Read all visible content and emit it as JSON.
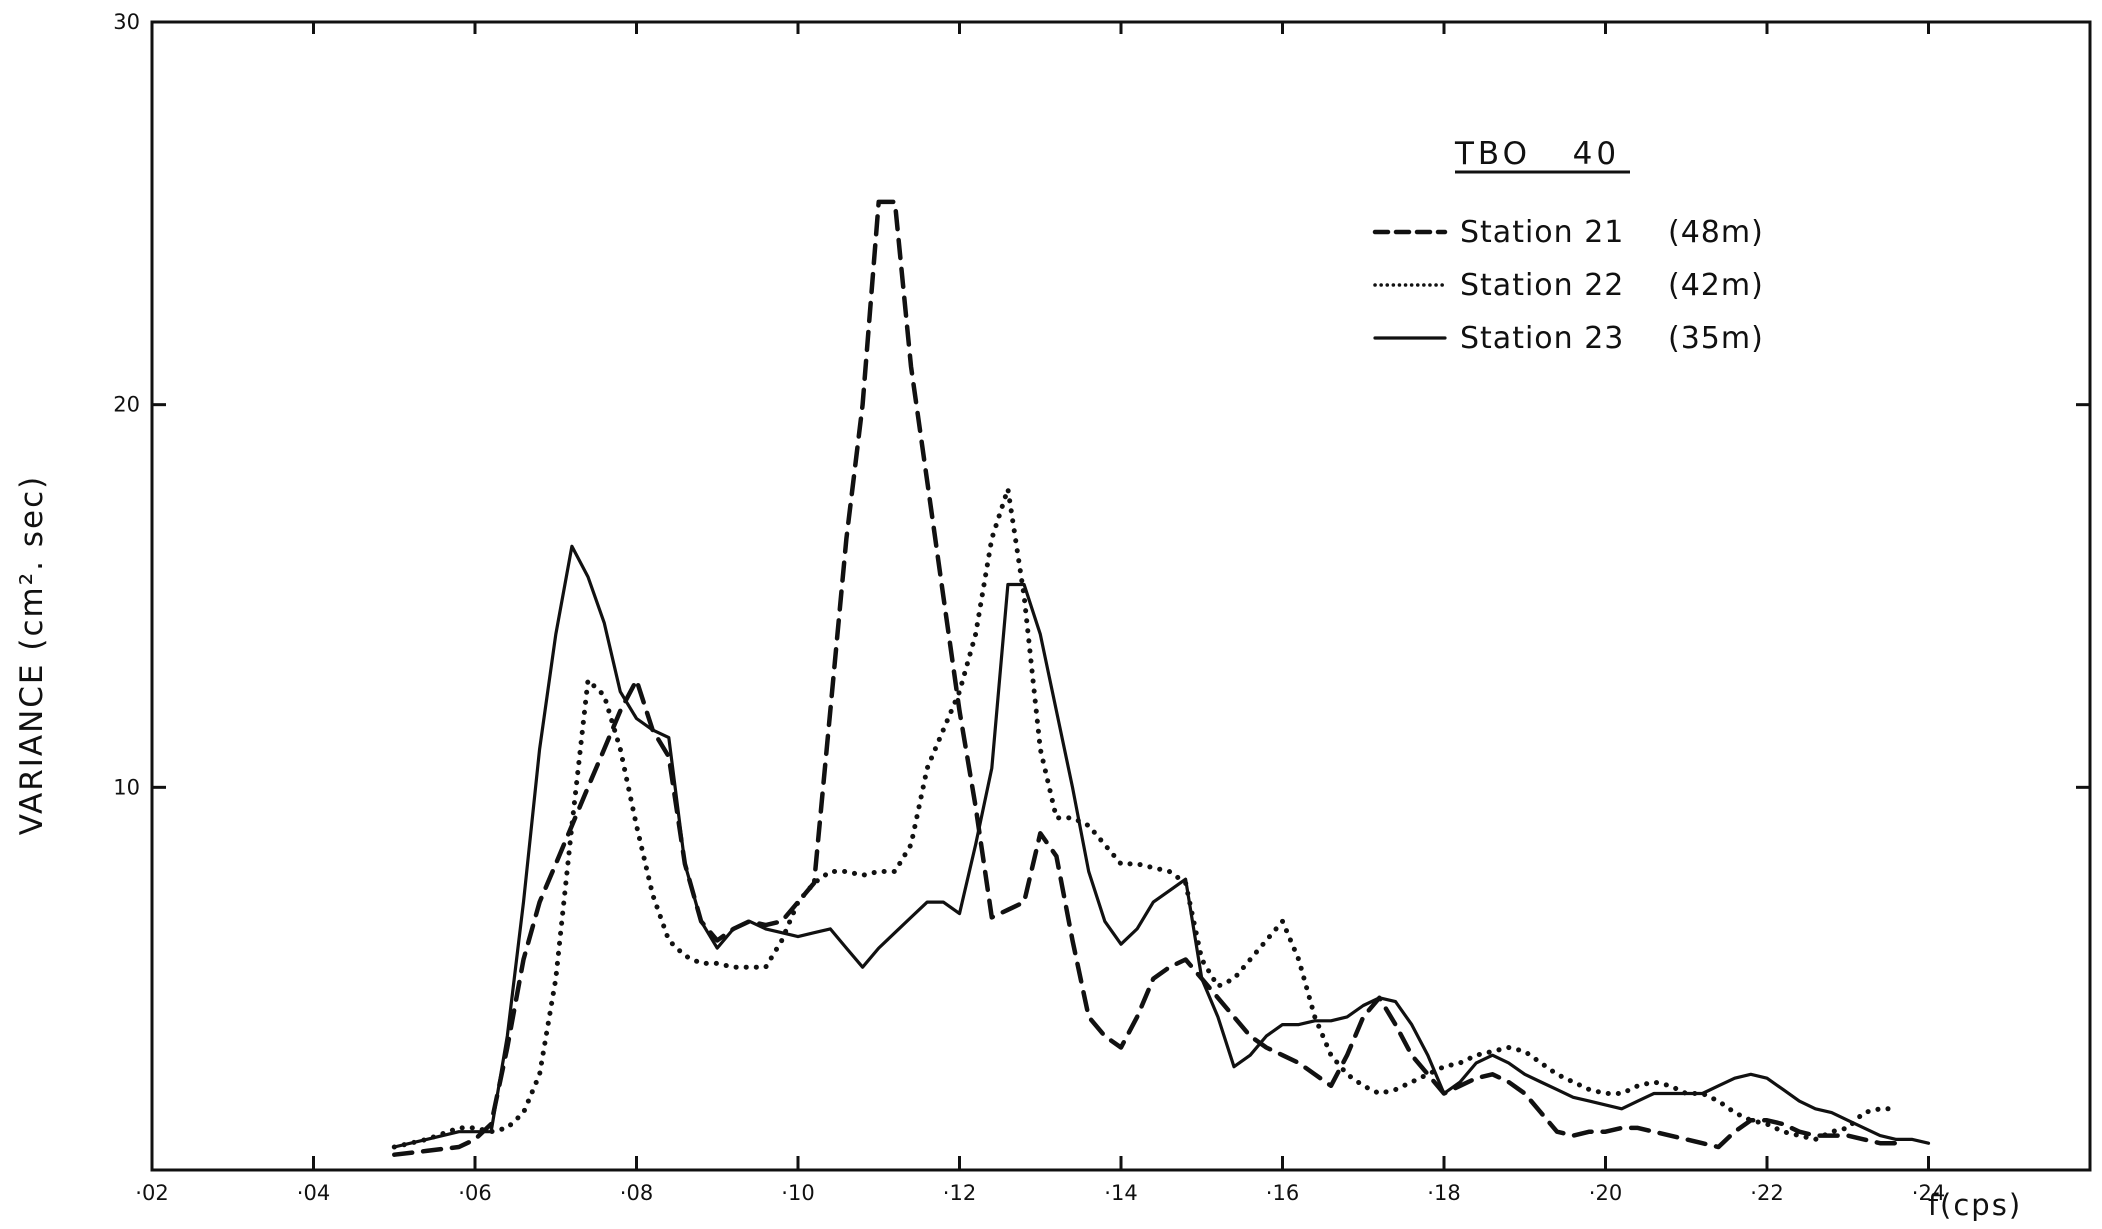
{
  "chart_data": {
    "type": "line",
    "title": "TBO   40",
    "xlabel": "f(cps)",
    "ylabel": "VARIANCE (cm². sec)",
    "xlim": [
      0.02,
      0.26
    ],
    "ylim": [
      0,
      30
    ],
    "grid": false,
    "legend_position": "top-right",
    "x_ticks": [
      0.02,
      0.04,
      0.06,
      0.08,
      0.1,
      0.12,
      0.14,
      0.16,
      0.18,
      0.2,
      0.22,
      0.24
    ],
    "x_tick_labels": [
      "·02",
      "·04",
      "·06",
      "·08",
      "·10",
      "·12",
      "·14",
      "·16",
      "·18",
      "·20",
      "·22",
      "·24"
    ],
    "y_ticks": [
      10,
      20,
      30
    ],
    "y_tick_labels": [
      "10",
      "20",
      "30"
    ],
    "series": [
      {
        "name": "Station 21",
        "depth": "(48m)",
        "style": "dashed",
        "x": [
          0.05,
          0.054,
          0.058,
          0.06,
          0.062,
          0.064,
          0.066,
          0.068,
          0.07,
          0.072,
          0.074,
          0.076,
          0.078,
          0.08,
          0.082,
          0.084,
          0.086,
          0.088,
          0.09,
          0.092,
          0.094,
          0.096,
          0.098,
          0.1,
          0.102,
          0.104,
          0.106,
          0.108,
          0.11,
          0.112,
          0.114,
          0.116,
          0.118,
          0.12,
          0.122,
          0.124,
          0.126,
          0.128,
          0.13,
          0.132,
          0.134,
          0.136,
          0.138,
          0.14,
          0.142,
          0.144,
          0.146,
          0.148,
          0.15,
          0.152,
          0.154,
          0.156,
          0.158,
          0.16,
          0.162,
          0.164,
          0.166,
          0.168,
          0.17,
          0.172,
          0.174,
          0.176,
          0.178,
          0.18,
          0.182,
          0.184,
          0.186,
          0.188,
          0.19,
          0.192,
          0.194,
          0.196,
          0.198,
          0.2,
          0.202,
          0.204,
          0.206,
          0.208,
          0.21,
          0.212,
          0.214,
          0.216,
          0.218,
          0.22,
          0.222,
          0.224,
          0.226,
          0.228,
          0.23,
          0.232,
          0.234,
          0.236
        ],
        "y": [
          0.4,
          0.5,
          0.6,
          0.8,
          1.2,
          3.2,
          5.5,
          7.0,
          8.0,
          9.0,
          10.0,
          11.0,
          12.0,
          12.8,
          11.5,
          10.8,
          8.0,
          6.5,
          6.0,
          6.3,
          6.5,
          6.4,
          6.5,
          7.0,
          7.5,
          12.0,
          16.5,
          20.0,
          25.3,
          25.3,
          21.0,
          18.0,
          15.0,
          12.0,
          9.5,
          6.6,
          6.8,
          7.0,
          8.8,
          8.2,
          6.0,
          4.0,
          3.5,
          3.2,
          4.0,
          5.0,
          5.3,
          5.5,
          5.0,
          4.5,
          4.0,
          3.5,
          3.2,
          3.0,
          2.8,
          2.5,
          2.2,
          3.0,
          4.0,
          4.5,
          3.8,
          3.0,
          2.5,
          2.0,
          2.2,
          2.4,
          2.5,
          2.3,
          2.0,
          1.5,
          1.0,
          0.9,
          1.0,
          1.0,
          1.1,
          1.1,
          1.0,
          0.9,
          0.8,
          0.7,
          0.6,
          1.0,
          1.3,
          1.3,
          1.2,
          1.0,
          0.9,
          0.9,
          0.9,
          0.8,
          0.7,
          0.7
        ]
      },
      {
        "name": "Station 22",
        "depth": "(42m)",
        "style": "dotted",
        "x": [
          0.05,
          0.054,
          0.058,
          0.06,
          0.062,
          0.064,
          0.066,
          0.068,
          0.07,
          0.072,
          0.074,
          0.076,
          0.078,
          0.08,
          0.082,
          0.084,
          0.086,
          0.088,
          0.09,
          0.092,
          0.094,
          0.096,
          0.098,
          0.1,
          0.102,
          0.104,
          0.106,
          0.108,
          0.11,
          0.112,
          0.114,
          0.116,
          0.118,
          0.12,
          0.122,
          0.124,
          0.126,
          0.128,
          0.13,
          0.132,
          0.134,
          0.136,
          0.138,
          0.14,
          0.142,
          0.144,
          0.146,
          0.148,
          0.15,
          0.152,
          0.154,
          0.156,
          0.158,
          0.16,
          0.162,
          0.164,
          0.166,
          0.168,
          0.17,
          0.172,
          0.174,
          0.176,
          0.178,
          0.18,
          0.182,
          0.184,
          0.186,
          0.188,
          0.19,
          0.192,
          0.194,
          0.196,
          0.198,
          0.2,
          0.202,
          0.204,
          0.206,
          0.208,
          0.21,
          0.212,
          0.214,
          0.216,
          0.218,
          0.22,
          0.222,
          0.224,
          0.226,
          0.228,
          0.23,
          0.232,
          0.234,
          0.236
        ],
        "y": [
          0.6,
          0.8,
          1.1,
          1.1,
          1.0,
          1.1,
          1.5,
          2.5,
          5.0,
          9.0,
          12.8,
          12.4,
          11.0,
          9.0,
          7.2,
          6.0,
          5.6,
          5.4,
          5.4,
          5.3,
          5.3,
          5.3,
          6.0,
          7.0,
          7.5,
          7.8,
          7.8,
          7.7,
          7.8,
          7.8,
          8.5,
          10.5,
          11.5,
          12.5,
          14.0,
          16.5,
          17.8,
          15.0,
          11.0,
          9.2,
          9.2,
          9.0,
          8.5,
          8.0,
          8.0,
          7.9,
          7.8,
          7.5,
          5.5,
          4.8,
          5.0,
          5.5,
          6.0,
          6.5,
          5.5,
          4.0,
          3.0,
          2.5,
          2.2,
          2.0,
          2.1,
          2.3,
          2.5,
          2.7,
          2.8,
          3.0,
          3.1,
          3.2,
          3.1,
          2.8,
          2.5,
          2.3,
          2.1,
          2.0,
          2.0,
          2.2,
          2.3,
          2.2,
          2.0,
          2.0,
          1.8,
          1.5,
          1.3,
          1.2,
          1.0,
          0.9,
          0.8,
          1.0,
          1.1,
          1.5,
          1.6,
          1.6
        ]
      },
      {
        "name": "Station 23",
        "depth": "(35m)",
        "style": "solid",
        "x": [
          0.05,
          0.054,
          0.058,
          0.06,
          0.062,
          0.064,
          0.066,
          0.068,
          0.07,
          0.072,
          0.074,
          0.076,
          0.078,
          0.08,
          0.082,
          0.084,
          0.086,
          0.088,
          0.09,
          0.092,
          0.094,
          0.096,
          0.098,
          0.1,
          0.102,
          0.104,
          0.106,
          0.108,
          0.11,
          0.112,
          0.114,
          0.116,
          0.118,
          0.12,
          0.122,
          0.124,
          0.126,
          0.128,
          0.13,
          0.132,
          0.134,
          0.136,
          0.138,
          0.14,
          0.142,
          0.144,
          0.146,
          0.148,
          0.15,
          0.152,
          0.154,
          0.156,
          0.158,
          0.16,
          0.162,
          0.164,
          0.166,
          0.168,
          0.17,
          0.172,
          0.174,
          0.176,
          0.178,
          0.18,
          0.182,
          0.184,
          0.186,
          0.188,
          0.19,
          0.192,
          0.194,
          0.196,
          0.198,
          0.2,
          0.202,
          0.204,
          0.206,
          0.208,
          0.21,
          0.212,
          0.214,
          0.216,
          0.218,
          0.22,
          0.222,
          0.224,
          0.226,
          0.228,
          0.23,
          0.232,
          0.234,
          0.236,
          0.238,
          0.24
        ],
        "y": [
          0.6,
          0.8,
          1.0,
          1.0,
          1.0,
          3.5,
          7.0,
          11.0,
          14.0,
          16.3,
          15.5,
          14.3,
          12.5,
          11.8,
          11.5,
          11.3,
          8.0,
          6.5,
          5.8,
          6.3,
          6.5,
          6.3,
          6.2,
          6.1,
          6.2,
          6.3,
          5.8,
          5.3,
          5.8,
          6.2,
          6.6,
          7.0,
          7.0,
          6.7,
          8.5,
          10.5,
          15.3,
          15.3,
          14.0,
          12.0,
          10.0,
          7.8,
          6.5,
          5.9,
          6.3,
          7.0,
          7.3,
          7.6,
          5.0,
          4.0,
          2.7,
          3.0,
          3.5,
          3.8,
          3.8,
          3.9,
          3.9,
          4.0,
          4.3,
          4.5,
          4.4,
          3.8,
          3.0,
          2.0,
          2.3,
          2.8,
          3.0,
          2.8,
          2.5,
          2.3,
          2.1,
          1.9,
          1.8,
          1.7,
          1.6,
          1.8,
          2.0,
          2.0,
          2.0,
          2.0,
          2.2,
          2.4,
          2.5,
          2.4,
          2.1,
          1.8,
          1.6,
          1.5,
          1.3,
          1.1,
          0.9,
          0.8,
          0.8,
          0.7
        ]
      }
    ]
  }
}
